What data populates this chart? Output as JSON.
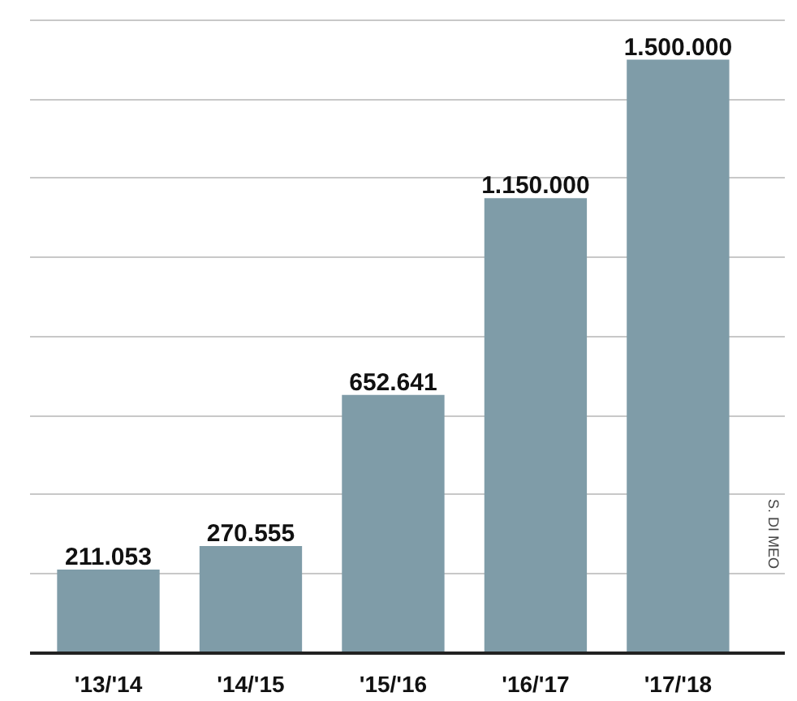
{
  "chart_data": {
    "type": "bar",
    "categories": [
      "'13/'14",
      "'14/'15",
      "'15/'16",
      "'16/'17",
      "'17/'18"
    ],
    "values": [
      211053,
      270555,
      652641,
      1150000,
      1500000
    ],
    "value_labels": [
      "211.053",
      "270.555",
      "652.641",
      "1.150.000",
      "1.500.000"
    ],
    "color": "#7f9ca8",
    "yticks": [
      {
        "value": 200000,
        "label": null
      },
      {
        "value": 400000,
        "label": null
      },
      {
        "value": 600000,
        "label": null
      },
      {
        "value": 800000,
        "label": null
      },
      {
        "value": 1000000,
        "label": null
      },
      {
        "value": 1200000,
        "label": null
      },
      {
        "value": 1400000,
        "label": null
      },
      {
        "value": 1600000,
        "label": null
      }
    ],
    "grid": "y",
    "tick_labels": "x",
    "annotations": [
      "S. DI MEO"
    ]
  }
}
